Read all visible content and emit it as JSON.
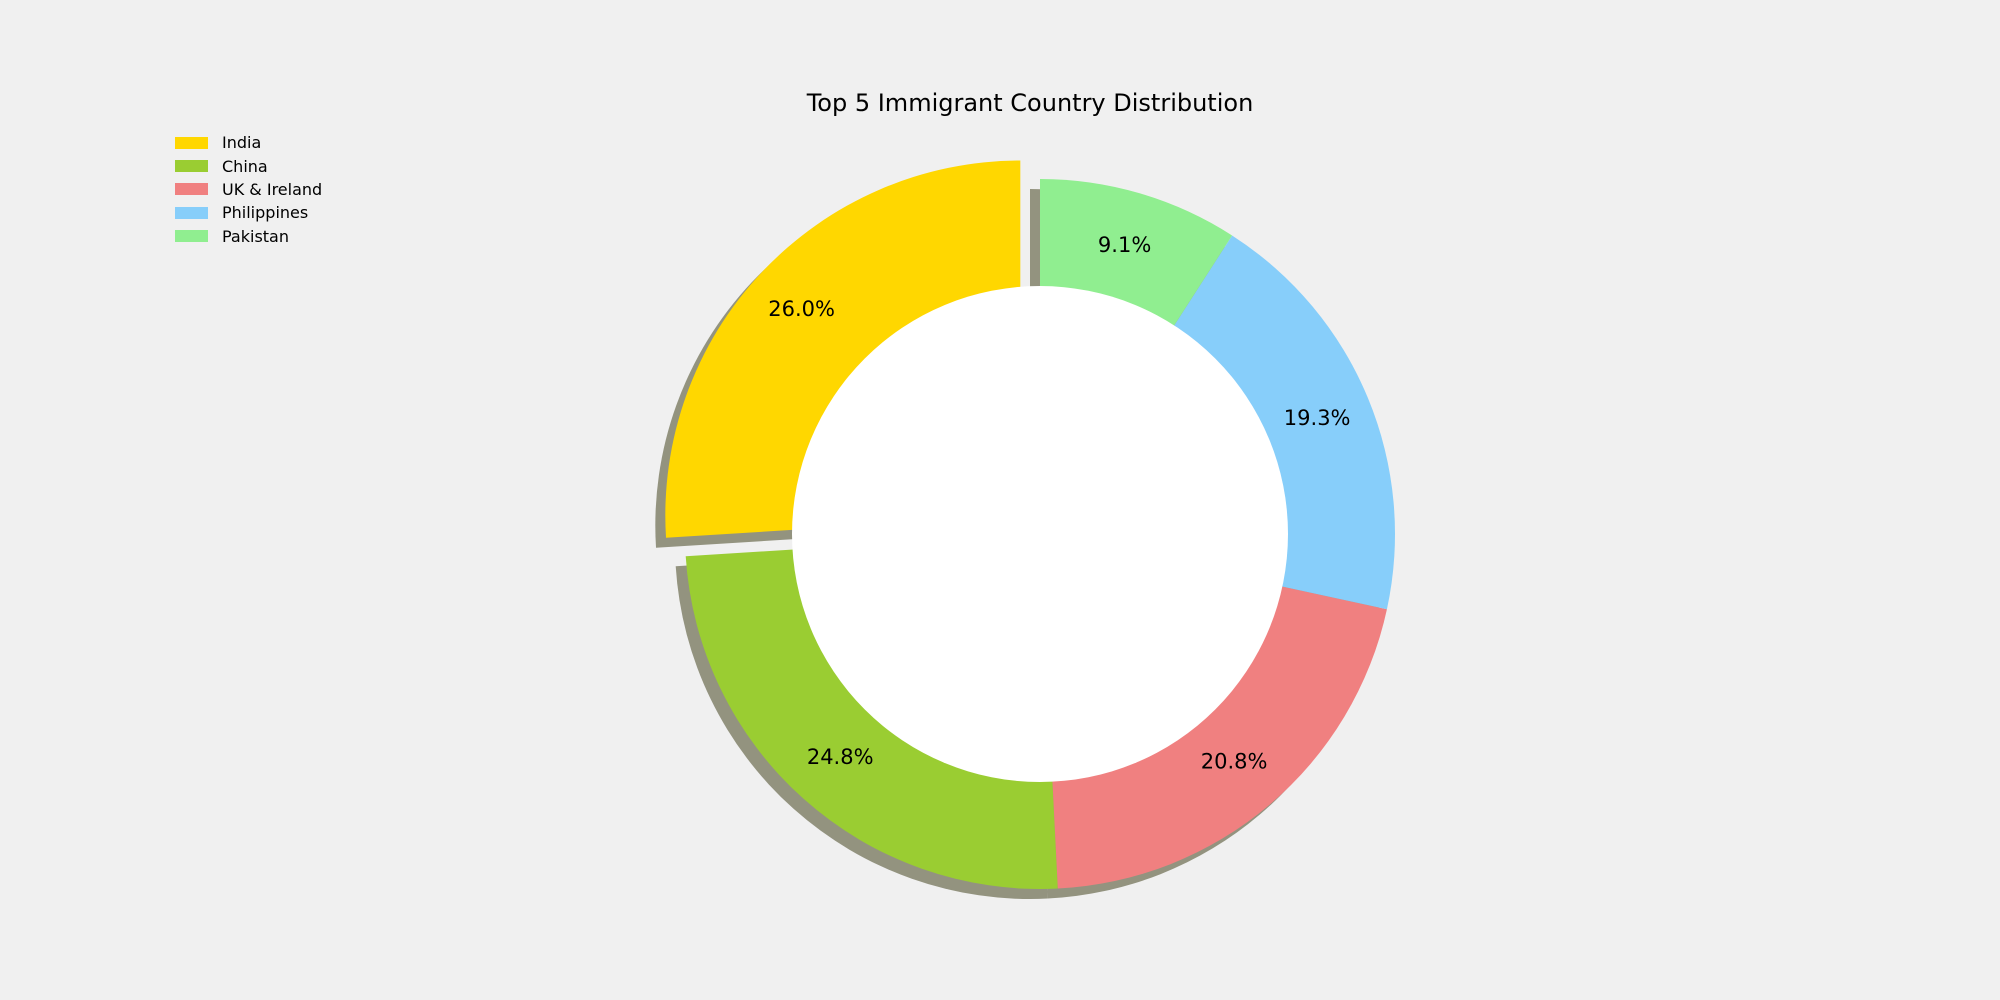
{
  "chart_data": {
    "type": "pie",
    "title": "Top 5 Immigrant Country Distribution",
    "donut": true,
    "shadow": true,
    "legend_position": "upper-left",
    "start_angle": 90,
    "direction": "counterclockwise",
    "slices": [
      {
        "label": "India",
        "value": 26.0,
        "pct_label": "26.0%",
        "color": "#FFD700",
        "explode": true
      },
      {
        "label": "China",
        "value": 24.8,
        "pct_label": "24.8%",
        "color": "#9ACD32",
        "explode": false
      },
      {
        "label": "UK & Ireland",
        "value": 20.8,
        "pct_label": "20.8%",
        "color": "#F08080",
        "explode": false
      },
      {
        "label": "Philippines",
        "value": 19.3,
        "pct_label": "19.3%",
        "color": "#87CEFA",
        "explode": false
      },
      {
        "label": "Pakistan",
        "value": 9.1,
        "pct_label": "9.1%",
        "color": "#90EE90",
        "explode": false
      }
    ]
  }
}
